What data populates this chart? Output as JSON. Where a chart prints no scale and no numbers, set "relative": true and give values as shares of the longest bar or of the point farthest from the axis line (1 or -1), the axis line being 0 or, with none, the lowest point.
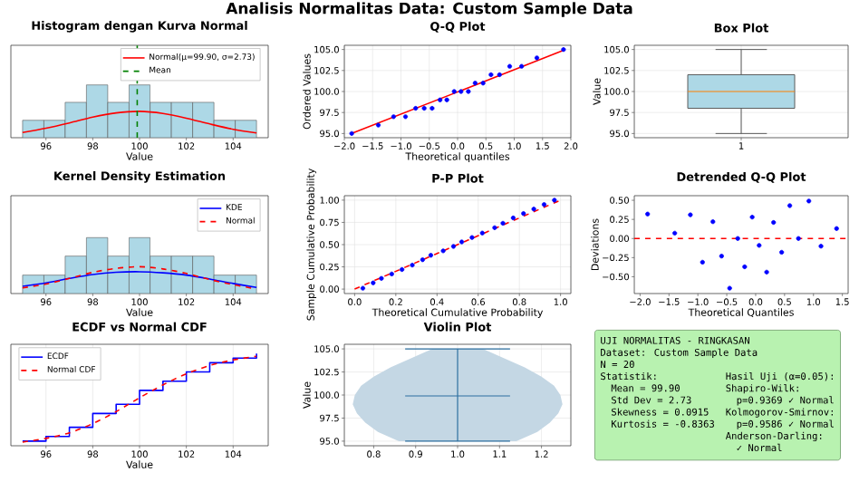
{
  "chart_data": [
    {
      "type": "other",
      "title": "Analisis Normalitas Data: Custom Sample Data"
    },
    {
      "type": "histogram",
      "title": "Histogram dengan Kurva Normal",
      "xlabel": "Value",
      "relative": true,
      "color": "#add8e6",
      "bins": [
        95,
        95.91,
        96.82,
        97.73,
        98.64,
        99.55,
        100.45,
        101.36,
        102.27,
        103.18,
        104.09,
        105
      ],
      "values": [
        0.33,
        0.33,
        0.67,
        1,
        0.67,
        1,
        0.67,
        0.67,
        0.67,
        0.33,
        0.33
      ],
      "series": [
        {
          "type": "line",
          "name": "Normal(μ=99.90, σ=2.73)",
          "color": "#ff0000",
          "x": [
            95,
            96,
            97,
            98,
            99,
            100,
            101,
            102,
            103,
            104,
            105
          ],
          "values": [
            0.1,
            0.18,
            0.28,
            0.39,
            0.47,
            0.5,
            0.46,
            0.37,
            0.26,
            0.16,
            0.09
          ]
        }
      ],
      "ref_lines": [
        {
          "axis": "x",
          "value": 99.9,
          "label": "Mean",
          "color": "#008000",
          "line_style": "dashed"
        }
      ],
      "xlim": [
        94.5,
        105.5
      ],
      "xticks": [
        96,
        98,
        100,
        102,
        104
      ],
      "legend": "top right"
    },
    {
      "type": "scatter",
      "title": "Q-Q Plot",
      "xlabel": "Theoretical quantiles",
      "ylabel": "Ordered Values",
      "grid": true,
      "xlim": [
        -2,
        2
      ],
      "ylim": [
        94.5,
        105.5
      ],
      "xticks": [
        {
          "value": -2,
          "label": "−2.0"
        },
        {
          "value": -1.5,
          "label": "−1.5"
        },
        {
          "value": -1,
          "label": "−1.0"
        },
        {
          "value": -0.5,
          "label": "−0.5"
        },
        {
          "value": 0,
          "label": "0.0"
        },
        0.5,
        {
          "value": 1,
          "label": "1.0"
        },
        1.5,
        {
          "value": 2,
          "label": "2.0"
        }
      ],
      "yticks": [
        {
          "value": 95,
          "label": "95.0"
        },
        97.5,
        {
          "value": 100,
          "label": "100.0"
        },
        102.5,
        {
          "value": 105,
          "label": "105.0"
        }
      ],
      "series": [
        {
          "color": "#0000ff",
          "marker": "circle",
          "x": [
            -1.87,
            -1.4,
            -1.13,
            -0.92,
            -0.74,
            -0.59,
            -0.45,
            -0.31,
            -0.19,
            -0.06,
            0.06,
            0.19,
            0.31,
            0.45,
            0.59,
            0.74,
            0.92,
            1.13,
            1.4,
            1.87
          ],
          "values": [
            95,
            96,
            97,
            97,
            98,
            98,
            98,
            99,
            99,
            100,
            100,
            100,
            101,
            101,
            102,
            102,
            103,
            103,
            104,
            105
          ]
        },
        {
          "type": "line",
          "color": "#ff0000",
          "x": [
            -1.87,
            1.87
          ],
          "values": [
            95.0,
            104.9
          ]
        }
      ]
    },
    {
      "type": "box",
      "title": "Box Plot",
      "ylabel": "Value",
      "categories": [
        "1"
      ],
      "color": "#add8e6",
      "grid": true,
      "boxes": [
        {
          "low": 95,
          "q1": 98,
          "median": 100,
          "q3": 102,
          "high": 105
        }
      ],
      "ylim": [
        94.5,
        105.5
      ],
      "yticks": [
        {
          "value": 95,
          "label": "95.0"
        },
        97.5,
        {
          "value": 100,
          "label": "100.0"
        },
        102.5,
        {
          "value": 105,
          "label": "105.0"
        }
      ]
    },
    {
      "type": "histogram",
      "title": "Kernel Density Estimation",
      "xlabel": "Value",
      "relative": true,
      "color": "#add8e6",
      "bins": [
        95,
        95.91,
        96.82,
        97.73,
        98.64,
        99.55,
        100.45,
        101.36,
        102.27,
        103.18,
        104.09,
        105
      ],
      "values": [
        0.33,
        0.33,
        0.67,
        1,
        0.67,
        1,
        0.67,
        0.67,
        0.67,
        0.33,
        0.33
      ],
      "series": [
        {
          "type": "line",
          "name": "KDE",
          "color": "#0000ff",
          "x": [
            95,
            96,
            97,
            98,
            99,
            100,
            101,
            102,
            103,
            104,
            105
          ],
          "values": [
            0.13,
            0.19,
            0.27,
            0.34,
            0.38,
            0.39,
            0.37,
            0.33,
            0.26,
            0.18,
            0.11
          ]
        },
        {
          "type": "line",
          "name": "Normal",
          "color": "#ff0000",
          "line_style": "dashed",
          "x": [
            95,
            96,
            97,
            98,
            99,
            100,
            101,
            102,
            103,
            104,
            105
          ],
          "values": [
            0.1,
            0.17,
            0.27,
            0.38,
            0.45,
            0.48,
            0.44,
            0.36,
            0.25,
            0.16,
            0.08
          ]
        }
      ],
      "xlim": [
        94.5,
        105.5
      ],
      "xticks": [
        96,
        98,
        100,
        102,
        104
      ],
      "legend": "top right"
    },
    {
      "type": "scatter",
      "title": "P-P Plot",
      "xlabel": "Theoretical Cumulative Probability",
      "ylabel": "Sample Cumulative Probability",
      "grid": true,
      "xlim": [
        -0.05,
        1.05
      ],
      "ylim": [
        -0.05,
        1.05
      ],
      "xticks": [
        {
          "value": 0,
          "label": "0.0"
        },
        0.2,
        0.4,
        0.6,
        0.8,
        {
          "value": 1,
          "label": "1.0"
        }
      ],
      "yticks": [
        {
          "value": 0,
          "label": "0.00"
        },
        0.25,
        {
          "value": 0.5,
          "label": "0.50"
        },
        0.75,
        {
          "value": 1,
          "label": "1.00"
        }
      ],
      "series": [
        {
          "color": "#0000ff",
          "marker": "circle",
          "x": [
            0.04,
            0.09,
            0.13,
            0.18,
            0.23,
            0.28,
            0.33,
            0.37,
            0.43,
            0.48,
            0.52,
            0.57,
            0.62,
            0.68,
            0.72,
            0.77,
            0.82,
            0.87,
            0.92,
            0.97
          ],
          "values": [
            0.01,
            0.07,
            0.12,
            0.17,
            0.22,
            0.27,
            0.33,
            0.38,
            0.43,
            0.48,
            0.53,
            0.58,
            0.63,
            0.69,
            0.74,
            0.8,
            0.85,
            0.9,
            0.95,
            1.0
          ]
        },
        {
          "type": "line",
          "color": "#ff0000",
          "line_style": "dashed",
          "x": [
            0,
            1
          ],
          "values": [
            0,
            1
          ]
        }
      ]
    },
    {
      "type": "scatter",
      "title": "Detrended Q-Q Plot",
      "xlabel": "Theoretical Quantiles",
      "ylabel": "Deviations",
      "marker": "circle",
      "xlim": [
        -2.1,
        1.6
      ],
      "ylim": [
        -0.72,
        0.56
      ],
      "xticks": [
        {
          "value": -2,
          "label": "−2.0"
        },
        {
          "value": -1.5,
          "label": "−1.5"
        },
        {
          "value": -1,
          "label": "−1.0"
        },
        {
          "value": -0.5,
          "label": "−0.5"
        },
        {
          "value": 0,
          "label": "0.0"
        },
        0.5,
        {
          "value": 1,
          "label": "1.0"
        },
        1.5
      ],
      "yticks": [
        {
          "value": -0.5,
          "label": "−0.50"
        },
        {
          "value": -0.25,
          "label": "−0.25"
        },
        {
          "value": 0,
          "label": "0.00"
        },
        0.25,
        {
          "value": 0.5,
          "label": "0.50"
        }
      ],
      "series": [
        {
          "color": "#0000ff",
          "x": [
            -1.87,
            -1.4,
            -1.13,
            -0.92,
            -0.74,
            -0.59,
            -0.45,
            -0.31,
            -0.19,
            -0.06,
            0.06,
            0.19,
            0.31,
            0.45,
            0.59,
            0.74,
            0.92,
            1.13,
            1.4
          ],
          "values": [
            0.32,
            0.07,
            0.31,
            -0.31,
            0.22,
            -0.23,
            -0.65,
            0.0,
            -0.37,
            0.28,
            -0.09,
            -0.44,
            0.21,
            -0.18,
            0.43,
            0.0,
            0.49,
            -0.1,
            0.13
          ]
        }
      ],
      "ref_lines": [
        {
          "axis": "y",
          "value": 0,
          "color": "#ff0000",
          "line_style": "dashed"
        }
      ]
    },
    {
      "type": "line",
      "title": "ECDF vs Normal CDF",
      "xlabel": "Value",
      "relative": true,
      "grid": true,
      "legend": "top left",
      "xlim": [
        94.5,
        105.5
      ],
      "xticks": [
        96,
        98,
        100,
        102,
        104
      ],
      "series": [
        {
          "type": "step",
          "name": "ECDF",
          "color": "#0000ff",
          "x": [
            95,
            96,
            97,
            98,
            99,
            100,
            101,
            102,
            103,
            104,
            105
          ],
          "values": [
            0.05,
            0.1,
            0.2,
            0.35,
            0.45,
            0.6,
            0.7,
            0.8,
            0.9,
            0.95,
            1.0
          ]
        },
        {
          "type": "line",
          "name": "Normal CDF",
          "color": "#ff0000",
          "line_style": "dashed",
          "x": [
            95,
            96,
            97,
            98,
            99,
            100,
            101,
            102,
            103,
            104,
            105
          ],
          "values": [
            0.04,
            0.08,
            0.14,
            0.24,
            0.37,
            0.52,
            0.66,
            0.78,
            0.87,
            0.93,
            0.97
          ]
        }
      ]
    },
    {
      "type": "line",
      "orientation": "horizontal",
      "title": "Violin Plot",
      "ylabel": "Value",
      "grid": true,
      "xlim": [
        0.73,
        1.27
      ],
      "ylim": [
        94.5,
        105.5
      ],
      "ref_lines": [
        {
          "axis": "y",
          "value": 95,
          "color": "#2c6fa0"
        },
        {
          "axis": "y",
          "value": 105,
          "color": "#2c6fa0"
        },
        {
          "axis": "y",
          "value": 99.9,
          "color": "#2c6fa0"
        }
      ],
      "xticks": [
        0.8,
        0.9,
        {
          "value": 1,
          "label": "1.0"
        },
        1.1,
        1.2
      ],
      "yticks": [
        {
          "value": 95,
          "label": "95.0"
        },
        97.5,
        {
          "value": 100,
          "label": "100.0"
        },
        102.5,
        {
          "value": 105,
          "label": "105.0"
        }
      ],
      "series": [
        {
          "color": "#2c6fa0",
          "x": [
            95,
            96,
            97,
            98,
            99,
            100,
            101,
            102,
            103,
            104,
            105
          ],
          "values": [
            1,
            1,
            1,
            1,
            1,
            1,
            1,
            1,
            1,
            1,
            1
          ],
          "upper": [
            1.14,
            1.19,
            1.22,
            1.24,
            1.25,
            1.245,
            1.23,
            1.2,
            1.16,
            1.11,
            1.06
          ],
          "lower": [
            0.86,
            0.81,
            0.78,
            0.76,
            0.75,
            0.755,
            0.77,
            0.8,
            0.84,
            0.89,
            0.94
          ]
        }
      ]
    },
    {
      "type": "other",
      "title": "UJI NORMALITAS - RINGKASAN",
      "annotations": [
        "Dataset: Custom Sample Data",
        "N = 20",
        "Statistik:",
        "Mean = 99.90",
        "Std Dev = 2.73",
        "Skewness = 0.0915",
        "Kurtosis = -0.8363",
        "Hasil Uji (α=0.05):",
        "Shapiro-Wilk:",
        "p=0.9369 ✓ Normal",
        "Kolmogorov-Smirnov:",
        "p=0.9586 ✓ Normal",
        "Anderson-Darling:",
        "✓ Normal"
      ]
    }
  ]
}
